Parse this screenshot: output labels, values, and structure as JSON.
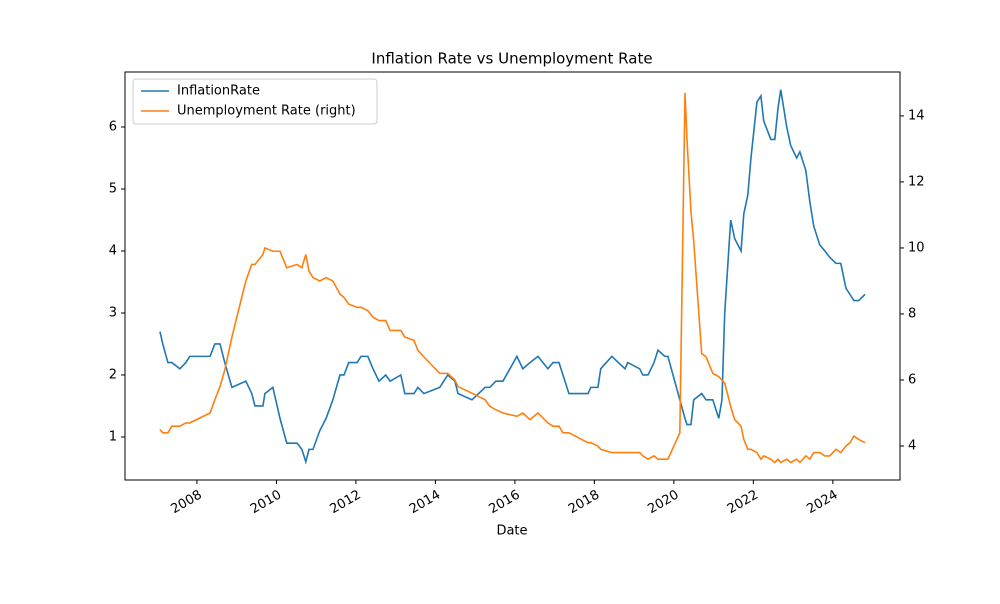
{
  "chart_data": {
    "type": "line",
    "title": "Inflation Rate vs Unemployment Rate",
    "x_label": "Date",
    "x": [
      2007.07,
      2007.14,
      2007.27,
      2007.37,
      2007.57,
      2007.72,
      2007.82,
      2008.33,
      2008.45,
      2008.58,
      2008.7,
      2008.88,
      2009.23,
      2009.38,
      2009.46,
      2009.66,
      2009.71,
      2009.91,
      2010.09,
      2010.26,
      2010.52,
      2010.64,
      2010.74,
      2010.82,
      2010.92,
      2011.09,
      2011.25,
      2011.42,
      2011.6,
      2011.7,
      2011.82,
      2012.03,
      2012.13,
      2012.3,
      2012.43,
      2012.58,
      2012.75,
      2012.86,
      2013.13,
      2013.23,
      2013.46,
      2013.56,
      2013.71,
      2014.11,
      2014.31,
      2014.49,
      2014.57,
      2014.92,
      2015.25,
      2015.37,
      2015.52,
      2015.7,
      2016.05,
      2016.2,
      2016.38,
      2016.58,
      2016.83,
      2016.96,
      2017.11,
      2017.21,
      2017.36,
      2017.84,
      2017.91,
      2018.09,
      2018.16,
      2018.44,
      2018.77,
      2018.84,
      2019.14,
      2019.22,
      2019.35,
      2019.5,
      2019.6,
      2019.77,
      2019.85,
      2020.15,
      2020.28,
      2020.33,
      2020.43,
      2020.5,
      2020.7,
      2020.81,
      2020.98,
      2021.13,
      2021.21,
      2021.28,
      2021.43,
      2021.53,
      2021.69,
      2021.76,
      2021.86,
      2021.94,
      2022.09,
      2022.19,
      2022.26,
      2022.44,
      2022.54,
      2022.62,
      2022.69,
      2022.84,
      2022.94,
      2023.09,
      2023.17,
      2023.32,
      2023.42,
      2023.52,
      2023.67,
      2023.8,
      2023.92,
      2024.08,
      2024.2,
      2024.33,
      2024.43,
      2024.53,
      2024.65,
      2024.81
    ],
    "series": [
      {
        "name": "InflationRate",
        "color": "#1f77b4",
        "axis": "y",
        "values": [
          2.7,
          2.5,
          2.2,
          2.2,
          2.1,
          2.2,
          2.3,
          2.3,
          2.5,
          2.5,
          2.2,
          1.8,
          1.9,
          1.7,
          1.5,
          1.5,
          1.7,
          1.8,
          1.3,
          0.9,
          0.9,
          0.8,
          0.6,
          0.8,
          0.8,
          1.1,
          1.3,
          1.6,
          2.0,
          2.0,
          2.2,
          2.2,
          2.3,
          2.3,
          2.1,
          1.9,
          2.0,
          1.9,
          2.0,
          1.7,
          1.7,
          1.8,
          1.7,
          1.8,
          2.0,
          1.9,
          1.7,
          1.6,
          1.8,
          1.8,
          1.9,
          1.9,
          2.3,
          2.1,
          2.2,
          2.3,
          2.1,
          2.2,
          2.2,
          2.0,
          1.7,
          1.7,
          1.8,
          1.8,
          2.1,
          2.3,
          2.1,
          2.2,
          2.1,
          2.0,
          2.0,
          2.2,
          2.4,
          2.3,
          2.3,
          1.6,
          1.3,
          1.2,
          1.2,
          1.6,
          1.7,
          1.6,
          1.6,
          1.3,
          1.6,
          3.0,
          4.5,
          4.2,
          4.0,
          4.6,
          4.9,
          5.5,
          6.4,
          6.5,
          6.1,
          5.8,
          5.8,
          6.3,
          6.6,
          6.0,
          5.7,
          5.5,
          5.6,
          5.3,
          4.8,
          4.4,
          4.1,
          4.0,
          3.9,
          3.8,
          3.8,
          3.4,
          3.3,
          3.2,
          3.2,
          3.3
        ]
      },
      {
        "name": "Unemployment Rate (right)",
        "color": "#ff7f0e",
        "axis": "y2",
        "values": [
          4.5,
          4.4,
          4.4,
          4.6,
          4.6,
          4.7,
          4.7,
          5.0,
          5.4,
          5.8,
          6.3,
          7.3,
          9.0,
          9.5,
          9.5,
          9.8,
          10.0,
          9.9,
          9.9,
          9.4,
          9.5,
          9.4,
          9.8,
          9.3,
          9.1,
          9.0,
          9.1,
          9.0,
          8.6,
          8.5,
          8.3,
          8.2,
          8.2,
          8.1,
          7.9,
          7.8,
          7.8,
          7.5,
          7.5,
          7.3,
          7.2,
          6.9,
          6.7,
          6.2,
          6.2,
          6.0,
          5.8,
          5.6,
          5.4,
          5.2,
          5.1,
          5.0,
          4.9,
          5.0,
          4.8,
          5.0,
          4.7,
          4.6,
          4.6,
          4.4,
          4.4,
          4.1,
          4.1,
          4.0,
          3.9,
          3.8,
          3.8,
          3.8,
          3.8,
          3.7,
          3.6,
          3.7,
          3.6,
          3.6,
          3.6,
          4.4,
          14.7,
          13.3,
          11.1,
          10.2,
          6.8,
          6.7,
          6.2,
          6.1,
          6.0,
          5.9,
          5.2,
          4.8,
          4.6,
          4.2,
          3.9,
          3.9,
          3.8,
          3.6,
          3.7,
          3.6,
          3.5,
          3.6,
          3.5,
          3.6,
          3.5,
          3.6,
          3.5,
          3.7,
          3.6,
          3.8,
          3.8,
          3.7,
          3.7,
          3.9,
          3.8,
          4.0,
          4.1,
          4.3,
          4.2,
          4.1
        ]
      }
    ],
    "xlim": [
      2006.19,
      2025.69
    ],
    "xticks": [
      2008,
      2010,
      2012,
      2014,
      2016,
      2018,
      2020,
      2022,
      2024
    ],
    "ylim": [
      0.306,
      6.887
    ],
    "yticks": [
      1,
      2,
      3,
      4,
      5,
      6
    ],
    "y2lim": [
      2.97,
      15.33
    ],
    "y2ticks": [
      4,
      6,
      8,
      10,
      12,
      14
    ],
    "legend": "upper left"
  }
}
